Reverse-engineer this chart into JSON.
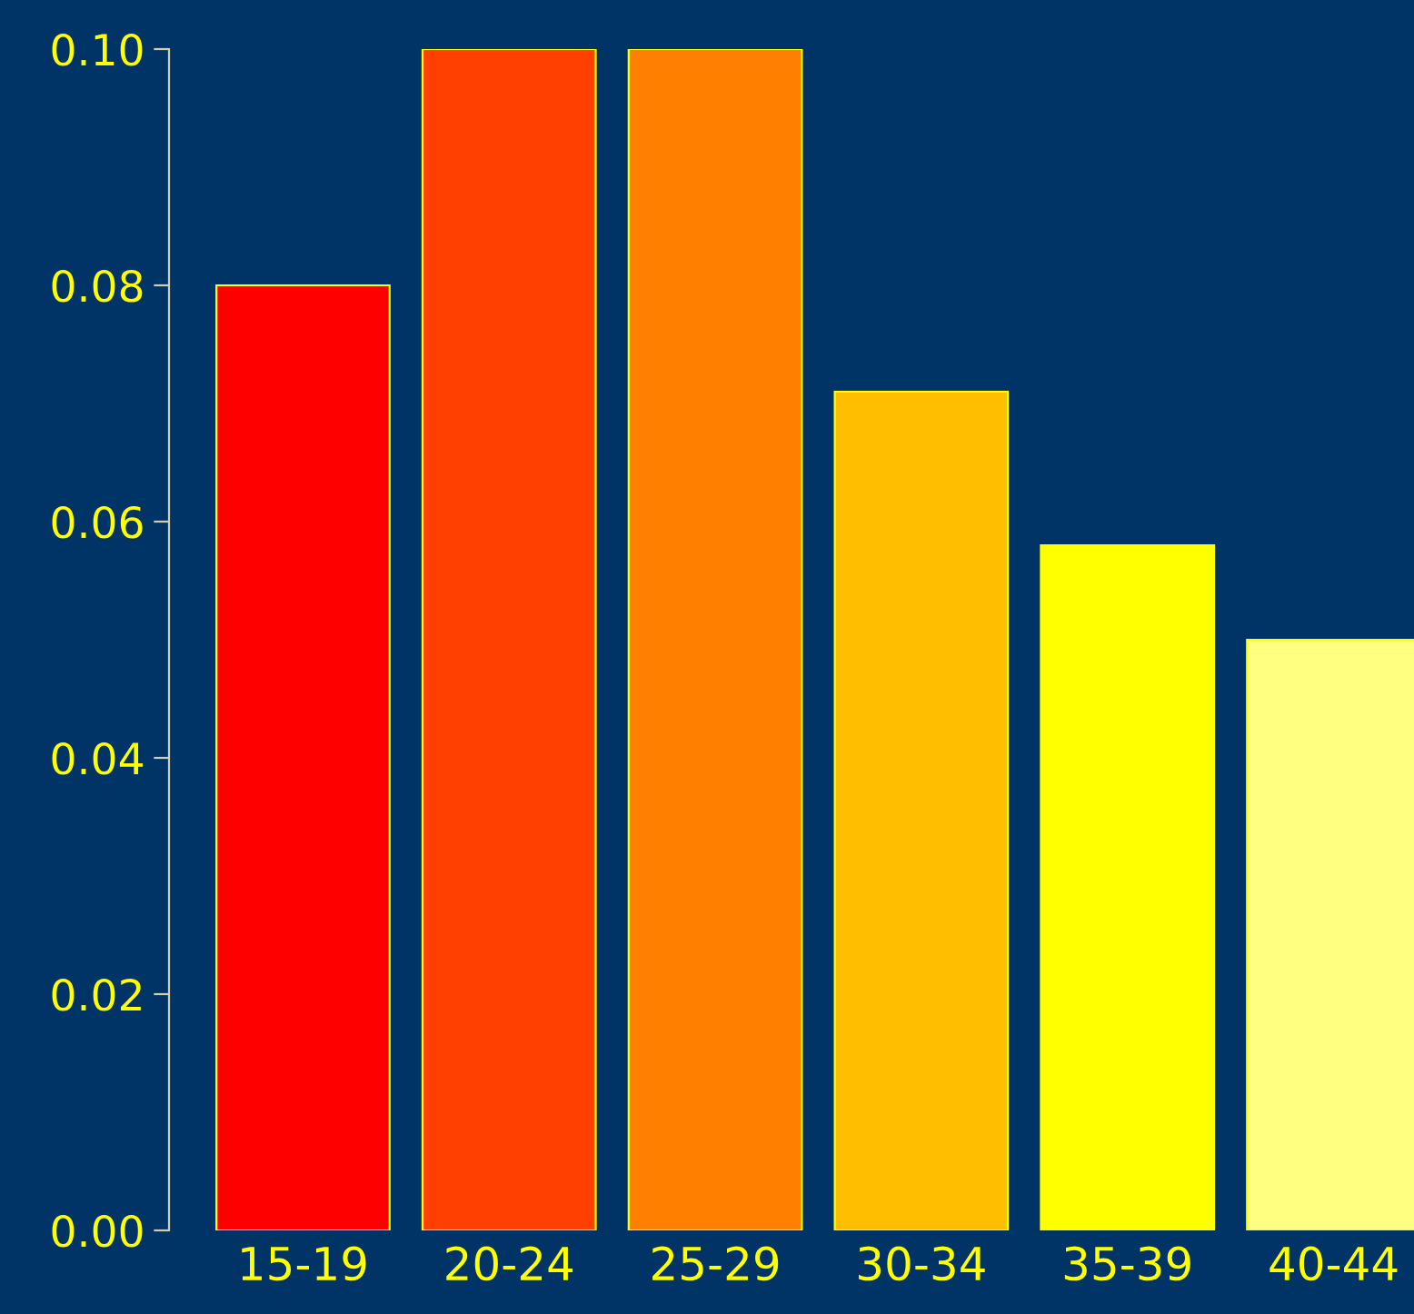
{
  "chart_data": {
    "type": "bar",
    "categories": [
      "15-19",
      "20-24",
      "25-29",
      "30-34",
      "35-39",
      "40-44"
    ],
    "values": [
      0.08,
      0.1,
      0.1,
      0.071,
      0.058,
      0.05
    ],
    "colors": [
      "#ff0000",
      "#ff4000",
      "#ff8000",
      "#ffbf00",
      "#ffff00",
      "#ffff80"
    ],
    "ylim": [
      0,
      0.1
    ],
    "yticks": [
      {
        "value": 0,
        "label": "0.00"
      },
      {
        "value": 0.02,
        "label": "0.02"
      },
      {
        "value": 0.04,
        "label": "0.04"
      },
      {
        "value": 0.06,
        "label": "0.06"
      },
      {
        "value": 0.08,
        "label": "0.08"
      },
      {
        "value": 0.1,
        "label": "0.10"
      }
    ],
    "grid": false,
    "legend": false
  }
}
